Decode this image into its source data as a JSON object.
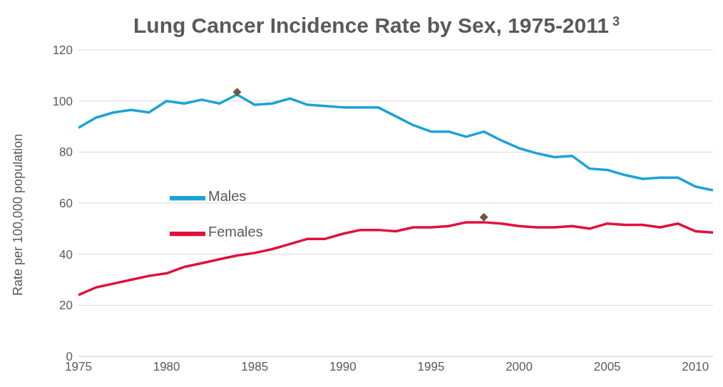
{
  "chart_data": {
    "type": "line",
    "title": "Lung Cancer Incidence Rate by Sex, 1975-2011$^{3}$",
    "ylabel": "Rate per 100,000 population",
    "x": [
      1975,
      1976,
      1977,
      1978,
      1979,
      1980,
      1981,
      1982,
      1983,
      1984,
      1985,
      1986,
      1987,
      1988,
      1989,
      1990,
      1991,
      1992,
      1993,
      1994,
      1995,
      1996,
      1997,
      1998,
      1999,
      2000,
      2001,
      2002,
      2003,
      2004,
      2005,
      2006,
      2007,
      2008,
      2009,
      2010,
      2011
    ],
    "series": [
      {
        "name": "Males",
        "color": "#1ba3d6",
        "values": [
          89.5,
          93.5,
          95.5,
          96.5,
          95.5,
          100,
          99,
          100.5,
          99,
          102.5,
          98.5,
          99,
          101,
          98.5,
          98,
          97.5,
          97.5,
          97.5,
          94,
          90.5,
          88,
          88,
          86,
          88,
          84.5,
          81.5,
          79.5,
          78,
          78.5,
          73.5,
          73,
          71,
          69.5,
          70,
          70,
          66.5,
          65
        ]
      },
      {
        "name": "Females",
        "color": "#e0103c",
        "values": [
          24,
          27,
          28.5,
          30,
          31.5,
          32.5,
          35,
          36.5,
          38,
          39.5,
          40.5,
          42,
          44,
          46,
          46,
          48,
          49.5,
          49.5,
          49,
          50.5,
          50.5,
          51,
          52.5,
          52.5,
          52,
          51,
          50.5,
          50.5,
          51,
          50,
          52,
          51.5,
          51.5,
          50.5,
          52,
          49,
          48.5
        ]
      },
      {
        "type": "scatter",
        "color": "#6b5a3e",
        "marker": "diamond",
        "x": [
          1984,
          1998
        ],
        "values": [
          103.5,
          54.5
        ]
      }
    ],
    "xlim": [
      1975,
      2011
    ],
    "xticks": [
      1975,
      1980,
      1985,
      1990,
      1995,
      2000,
      2005,
      2010
    ],
    "ylim": [
      0,
      120
    ],
    "yticks": [
      0,
      20,
      40,
      60,
      80,
      100,
      120
    ],
    "grid": "y",
    "legend": "left",
    "marker": "none"
  }
}
